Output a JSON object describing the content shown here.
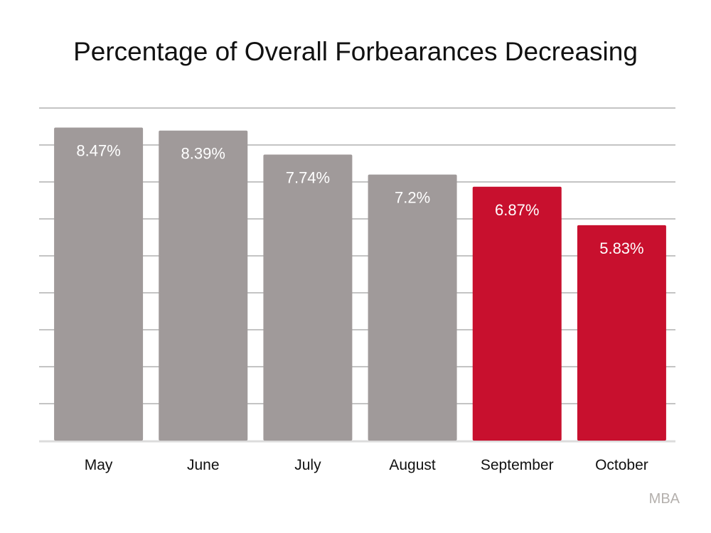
{
  "chart_data": {
    "type": "bar",
    "title": "Percentage of Overall Forbearances Decreasing",
    "categories": [
      "May",
      "June",
      "July",
      "August",
      "September",
      "October"
    ],
    "values": [
      8.47,
      8.39,
      7.74,
      7.2,
      6.87,
      5.83
    ],
    "data_labels": [
      "8.47%",
      "8.39%",
      "7.74%",
      "7.2%",
      "6.87%",
      "5.83%"
    ],
    "bar_colors": [
      "#a09a9a",
      "#a09a9a",
      "#a09a9a",
      "#a09a9a",
      "#c8102e",
      "#c8102e"
    ],
    "ylim": [
      0,
      9
    ],
    "grid": true,
    "xlabel": "",
    "ylabel": ""
  },
  "source": "MBA"
}
